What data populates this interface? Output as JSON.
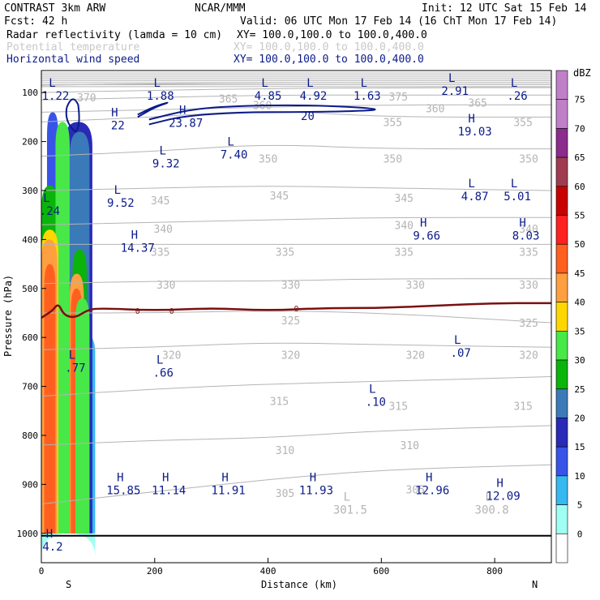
{
  "header": {
    "model": "CONTRAST  3km ARW",
    "org": "NCAR/MMM",
    "init": "Init: 12 UTC Sat 15 Feb 14",
    "fcst": "Fcst:   42 h",
    "valid": "Valid: 06 UTC Mon 17 Feb 14 (16 ChT Mon 17 Feb 14)",
    "field1": "Radar reflectivity (lamda = 10 cm)",
    "field1_xy": "XY= 100.0,100.0 to 100.0,400.0",
    "field2": "Potential temperature",
    "field2_xy": "XY= 100.0,100.0 to 100.0,400.0",
    "field3": "Horizontal wind speed",
    "field3_xy": "XY= 100.0,100.0 to 100.0,400.0"
  },
  "colors": {
    "wind": "#0a1a8a",
    "theta": "#b4b4b4",
    "freezing": "#7a1010",
    "text_blue": "#0a1a8a"
  },
  "chart_data": {
    "type": "cross-section",
    "xlabel": "Distance (km)",
    "ylabel": "Pressure (hPa)",
    "xlim": [
      0,
      900
    ],
    "ylim": [
      1060,
      55
    ],
    "xticks": [
      0,
      200,
      400,
      600,
      800
    ],
    "yticks": [
      100,
      200,
      300,
      400,
      500,
      600,
      700,
      800,
      900,
      1000
    ],
    "x_end_labels": {
      "left": "S",
      "right": "N"
    },
    "colorbar": {
      "unit": "dBZ",
      "levels": [
        0,
        5,
        10,
        15,
        20,
        25,
        30,
        35,
        40,
        45,
        50,
        55,
        60,
        65,
        70,
        75
      ],
      "colors": [
        "#ffffff",
        "#9ffff2",
        "#36b8f0",
        "#3854e8",
        "#2a2ab8",
        "#3a7ab8",
        "#0ab40a",
        "#48e848",
        "#ffd700",
        "#ffa040",
        "#ff6020",
        "#ff2020",
        "#c80000",
        "#a03c50",
        "#8c2c8c",
        "#c080c8"
      ]
    },
    "reflectivity_columns": [
      {
        "x0": 0,
        "x1": 95,
        "ptop": 1000,
        "pbot": 1000,
        "level": 5
      },
      {
        "x0": 5,
        "x1": 95,
        "ptop": 580,
        "pbot": 1000,
        "level": 10
      },
      {
        "x0": 10,
        "x1": 30,
        "ptop": 140,
        "pbot": 1000,
        "level": 15
      },
      {
        "x0": 40,
        "x1": 90,
        "ptop": 160,
        "pbot": 1000,
        "level": 20
      },
      {
        "x0": 50,
        "x1": 85,
        "ptop": 180,
        "pbot": 1000,
        "level": 25
      },
      {
        "x0": 0,
        "x1": 30,
        "ptop": 290,
        "pbot": 1000,
        "level": 30
      },
      {
        "x0": 25,
        "x1": 50,
        "ptop": 160,
        "pbot": 1000,
        "level": 35
      },
      {
        "x0": 55,
        "x1": 80,
        "ptop": 420,
        "pbot": 1000,
        "level": 30
      },
      {
        "x0": 0,
        "x1": 30,
        "ptop": 380,
        "pbot": 1000,
        "level": 40
      },
      {
        "x0": 0,
        "x1": 28,
        "ptop": 400,
        "pbot": 1000,
        "level": 45
      },
      {
        "x0": 5,
        "x1": 25,
        "ptop": 450,
        "pbot": 1000,
        "level": 50
      },
      {
        "x0": 50,
        "x1": 75,
        "ptop": 470,
        "pbot": 1000,
        "level": 45
      },
      {
        "x0": 52,
        "x1": 72,
        "ptop": 500,
        "pbot": 1000,
        "level": 50
      },
      {
        "x0": 60,
        "x1": 85,
        "ptop": 520,
        "pbot": 1000,
        "level": 35
      }
    ],
    "theta_contours": [
      {
        "label": "305",
        "pts": [
          [
            0,
            940
          ],
          [
            200,
            915
          ],
          [
            400,
            890
          ],
          [
            600,
            870
          ],
          [
            900,
            860
          ]
        ]
      },
      {
        "label": "310",
        "pts": [
          [
            0,
            820
          ],
          [
            200,
            810
          ],
          [
            400,
            805
          ],
          [
            600,
            790
          ],
          [
            900,
            780
          ]
        ]
      },
      {
        "label": "315",
        "pts": [
          [
            0,
            720
          ],
          [
            200,
            705
          ],
          [
            400,
            695
          ],
          [
            600,
            690
          ],
          [
            900,
            680
          ]
        ]
      },
      {
        "label": "320",
        "pts": [
          [
            0,
            625
          ],
          [
            200,
            620
          ],
          [
            400,
            610
          ],
          [
            600,
            615
          ],
          [
            900,
            620
          ]
        ]
      },
      {
        "label": "325",
        "pts": [
          [
            0,
            550
          ],
          [
            200,
            550
          ],
          [
            400,
            545
          ],
          [
            600,
            550
          ],
          [
            900,
            570
          ]
        ]
      },
      {
        "label": "330",
        "pts": [
          [
            0,
            490
          ],
          [
            200,
            485
          ],
          [
            400,
            485
          ],
          [
            600,
            480
          ],
          [
            900,
            480
          ]
        ]
      },
      {
        "label": "335",
        "pts": [
          [
            0,
            410
          ],
          [
            200,
            410
          ],
          [
            400,
            410
          ],
          [
            600,
            410
          ],
          [
            900,
            410
          ]
        ]
      },
      {
        "label": "340",
        "pts": [
          [
            0,
            370
          ],
          [
            200,
            365
          ],
          [
            400,
            360
          ],
          [
            600,
            355
          ],
          [
            900,
            355
          ]
        ]
      },
      {
        "label": "345",
        "pts": [
          [
            0,
            300
          ],
          [
            200,
            295
          ],
          [
            400,
            290
          ],
          [
            600,
            295
          ],
          [
            900,
            300
          ]
        ]
      },
      {
        "label": "350",
        "pts": [
          [
            0,
            230
          ],
          [
            200,
            220
          ],
          [
            400,
            205
          ],
          [
            600,
            215
          ],
          [
            900,
            215
          ]
        ]
      },
      {
        "label": "355",
        "pts": [
          [
            0,
            160
          ],
          [
            200,
            150
          ],
          [
            400,
            135
          ],
          [
            600,
            150
          ],
          [
            900,
            150
          ]
        ]
      },
      {
        "label": "360",
        "pts": [
          [
            0,
            140
          ],
          [
            200,
            135
          ],
          [
            400,
            130
          ],
          [
            600,
            125
          ],
          [
            900,
            125
          ]
        ]
      },
      {
        "label": "365",
        "pts": [
          [
            0,
            115
          ],
          [
            200,
            110
          ],
          [
            400,
            105
          ],
          [
            600,
            105
          ],
          [
            900,
            105
          ]
        ]
      },
      {
        "label": "370",
        "pts": [
          [
            0,
            100
          ],
          [
            200,
            95
          ],
          [
            400,
            92
          ],
          [
            600,
            90
          ],
          [
            900,
            90
          ]
        ]
      },
      {
        "label": "375",
        "pts": [
          [
            0,
            85
          ],
          [
            200,
            82
          ],
          [
            400,
            80
          ],
          [
            600,
            80
          ],
          [
            900,
            80
          ]
        ]
      }
    ],
    "theta_labels": [
      {
        "text": "370",
        "x": 80,
        "p": 110
      },
      {
        "text": "365",
        "x": 330,
        "p": 112
      },
      {
        "text": "360",
        "x": 390,
        "p": 125
      },
      {
        "text": "375",
        "x": 630,
        "p": 108
      },
      {
        "text": "360",
        "x": 695,
        "p": 132
      },
      {
        "text": "365",
        "x": 770,
        "p": 120
      },
      {
        "text": "355",
        "x": 620,
        "p": 160
      },
      {
        "text": "355",
        "x": 850,
        "p": 160
      },
      {
        "text": "350",
        "x": 400,
        "p": 235
      },
      {
        "text": "350",
        "x": 620,
        "p": 235
      },
      {
        "text": "350",
        "x": 860,
        "p": 235
      },
      {
        "text": "345",
        "x": 210,
        "p": 320
      },
      {
        "text": "345",
        "x": 420,
        "p": 310
      },
      {
        "text": "345",
        "x": 640,
        "p": 315
      },
      {
        "text": "340",
        "x": 215,
        "p": 378
      },
      {
        "text": "340",
        "x": 640,
        "p": 370
      },
      {
        "text": "340",
        "x": 860,
        "p": 378
      },
      {
        "text": "335",
        "x": 210,
        "p": 425
      },
      {
        "text": "335",
        "x": 430,
        "p": 425
      },
      {
        "text": "335",
        "x": 640,
        "p": 425
      },
      {
        "text": "335",
        "x": 860,
        "p": 425
      },
      {
        "text": "330",
        "x": 220,
        "p": 492
      },
      {
        "text": "330",
        "x": 440,
        "p": 492
      },
      {
        "text": "330",
        "x": 660,
        "p": 492
      },
      {
        "text": "330",
        "x": 860,
        "p": 492
      },
      {
        "text": "325",
        "x": 440,
        "p": 565
      },
      {
        "text": "325",
        "x": 860,
        "p": 570
      },
      {
        "text": "320",
        "x": 230,
        "p": 635
      },
      {
        "text": "320",
        "x": 440,
        "p": 635
      },
      {
        "text": "320",
        "x": 660,
        "p": 635
      },
      {
        "text": "320",
        "x": 860,
        "p": 635
      },
      {
        "text": "315",
        "x": 420,
        "p": 730
      },
      {
        "text": "315",
        "x": 630,
        "p": 740
      },
      {
        "text": "315",
        "x": 850,
        "p": 740
      },
      {
        "text": "310",
        "x": 430,
        "p": 830
      },
      {
        "text": "310",
        "x": 650,
        "p": 820
      },
      {
        "text": "305",
        "x": 430,
        "p": 918
      },
      {
        "text": "305",
        "x": 660,
        "p": 910
      }
    ],
    "freezing_level": {
      "label": "0",
      "pts": [
        [
          0,
          560
        ],
        [
          20,
          545
        ],
        [
          30,
          530
        ],
        [
          40,
          555
        ],
        [
          60,
          560
        ],
        [
          80,
          545
        ],
        [
          100,
          540
        ],
        [
          200,
          545
        ],
        [
          300,
          540
        ],
        [
          400,
          545
        ],
        [
          500,
          540
        ],
        [
          600,
          540
        ],
        [
          700,
          535
        ],
        [
          800,
          530
        ],
        [
          900,
          530
        ]
      ]
    },
    "wind_contours": [
      {
        "label": "20",
        "pts": [
          [
            190,
            165
          ],
          [
            250,
            148
          ],
          [
            350,
            140
          ],
          [
            450,
            140
          ],
          [
            550,
            138
          ],
          [
            600,
            135
          ],
          [
            560,
            130
          ],
          [
            450,
            125
          ],
          [
            330,
            128
          ],
          [
            260,
            135
          ],
          [
            190,
            155
          ]
        ]
      },
      {
        "label": "22",
        "pts": [
          [
            170,
            145
          ],
          [
            200,
            128
          ],
          [
            230,
            118
          ],
          [
            200,
            130
          ],
          [
            170,
            150
          ]
        ]
      }
    ],
    "wind_labels": [
      {
        "text": "20",
        "x": 470,
        "p": 148
      }
    ],
    "hl_labels": [
      {
        "sym": "L",
        "val": "1.22",
        "x": 25,
        "p": 95
      },
      {
        "sym": "L",
        "val": "1.88",
        "x": 210,
        "p": 95
      },
      {
        "sym": "L",
        "val": "4.85",
        "x": 400,
        "p": 95
      },
      {
        "sym": "L",
        "val": "4.92",
        "x": 480,
        "p": 95
      },
      {
        "sym": "L",
        "val": "1.63",
        "x": 575,
        "p": 95
      },
      {
        "sym": "L",
        "val": "2.91",
        "x": 730,
        "p": 85
      },
      {
        "sym": "L",
        "val": ".26",
        "x": 840,
        "p": 95
      },
      {
        "sym": "H",
        "val": "22",
        "x": 135,
        "p": 155
      },
      {
        "sym": "H",
        "val": "23.87",
        "x": 255,
        "p": 150
      },
      {
        "sym": "H",
        "val": "19.03",
        "x": 765,
        "p": 168
      },
      {
        "sym": "L",
        "val": "9.32",
        "x": 220,
        "p": 233
      },
      {
        "sym": "L",
        "val": "7.40",
        "x": 340,
        "p": 215
      },
      {
        "sym": "L",
        "val": "4.87",
        "x": 765,
        "p": 300
      },
      {
        "sym": "L",
        "val": "5.01",
        "x": 840,
        "p": 300
      },
      {
        "sym": "L",
        "val": "9.52",
        "x": 140,
        "p": 313
      },
      {
        "sym": "L",
        "val": ".24",
        "x": 15,
        "p": 330
      },
      {
        "sym": "H",
        "val": "9.66",
        "x": 680,
        "p": 380
      },
      {
        "sym": "H",
        "val": "8.03",
        "x": 855,
        "p": 380
      },
      {
        "sym": "H",
        "val": "14.37",
        "x": 170,
        "p": 405
      },
      {
        "sym": "L",
        "val": ".07",
        "x": 740,
        "p": 620
      },
      {
        "sym": "L",
        "val": ".77",
        "x": 60,
        "p": 650
      },
      {
        "sym": "L",
        "val": ".66",
        "x": 215,
        "p": 660
      },
      {
        "sym": "L",
        "val": ".10",
        "x": 590,
        "p": 720
      },
      {
        "sym": "H",
        "val": "15.85",
        "x": 145,
        "p": 900
      },
      {
        "sym": "H",
        "val": "11.14",
        "x": 225,
        "p": 900
      },
      {
        "sym": "H",
        "val": "11.91",
        "x": 330,
        "p": 900
      },
      {
        "sym": "H",
        "val": "11.93",
        "x": 485,
        "p": 900
      },
      {
        "sym": "H",
        "val": "12.96",
        "x": 690,
        "p": 900
      },
      {
        "sym": "H",
        "val": "12.09",
        "x": 815,
        "p": 912
      },
      {
        "sym": "L",
        "val": "301.5",
        "x": 545,
        "p": 940,
        "gray": true
      },
      {
        "sym": "L",
        "val": "300.8",
        "x": 795,
        "p": 940,
        "gray": true
      },
      {
        "sym": "H",
        "val": "4.2",
        "x": 20,
        "p": 1015
      }
    ]
  }
}
